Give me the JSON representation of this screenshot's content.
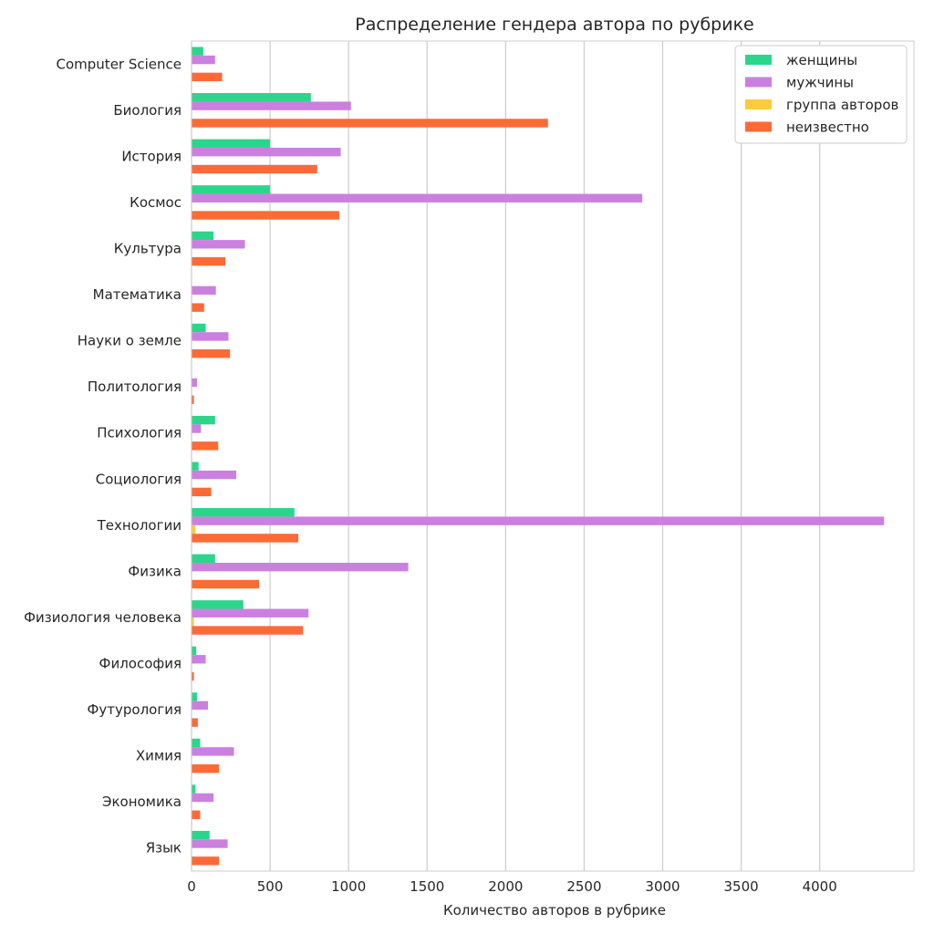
{
  "chart_data": {
    "type": "bar",
    "orientation": "horizontal",
    "title": "Распределение гендера автора по рубрике",
    "xlabel": "Количество авторов в рубрике",
    "ylabel": "",
    "xlim": [
      0,
      4600
    ],
    "xticks": [
      0,
      500,
      1000,
      1500,
      2000,
      2500,
      3000,
      3500,
      4000
    ],
    "grid": "vertical",
    "legend_position": "top-right",
    "categories": [
      "Computer Science",
      "Биология",
      "История",
      "Космос",
      "Культура",
      "Математика",
      "Науки о земле",
      "Политология",
      "Психология",
      "Социология",
      "Технологии",
      "Физика",
      "Физиология человека",
      "Философия",
      "Футурология",
      "Химия",
      "Экономика",
      "Язык"
    ],
    "series": [
      {
        "name": "женщины",
        "color": "#2bd68a",
        "values": [
          75,
          760,
          500,
          500,
          140,
          0,
          90,
          0,
          150,
          45,
          655,
          150,
          330,
          30,
          35,
          55,
          25,
          115
        ]
      },
      {
        "name": "мужчины",
        "color": "#cb80e0",
        "values": [
          150,
          1015,
          950,
          2870,
          340,
          155,
          235,
          35,
          60,
          285,
          4410,
          1380,
          745,
          90,
          105,
          270,
          140,
          230
        ]
      },
      {
        "name": "группа авторов",
        "color": "#fecb3e",
        "values": [
          0,
          0,
          0,
          0,
          0,
          0,
          0,
          0,
          0,
          0,
          25,
          0,
          15,
          0,
          0,
          0,
          0,
          0
        ]
      },
      {
        "name": "неизвестно",
        "color": "#fd6a36",
        "values": [
          195,
          2270,
          800,
          940,
          215,
          80,
          245,
          15,
          170,
          125,
          680,
          430,
          710,
          15,
          40,
          175,
          55,
          175
        ]
      }
    ]
  }
}
